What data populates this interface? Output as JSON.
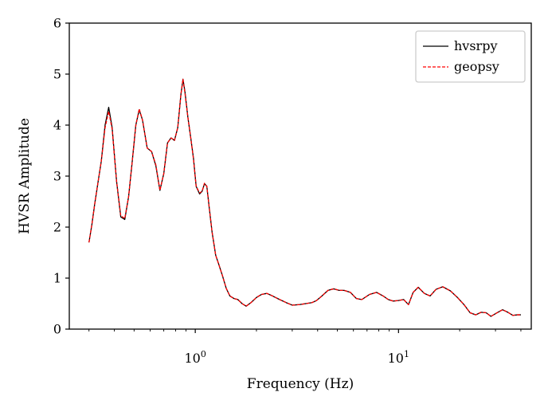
{
  "chart_data": {
    "type": "line",
    "title": "",
    "xlabel": "Frequency (Hz)",
    "ylabel": "HVSR Amplitude",
    "xscale": "log",
    "xlim": [
      0.24,
      45
    ],
    "ylim": [
      0,
      6
    ],
    "yticks": [
      "0",
      "1",
      "2",
      "3",
      "4",
      "5",
      "6"
    ],
    "xticks": [
      {
        "value": 1,
        "base": "10",
        "exp": "0"
      },
      {
        "value": 10,
        "base": "10",
        "exp": "1"
      }
    ],
    "grid": false,
    "legend_position": "top-right",
    "x": [
      0.3,
      0.31,
      0.32,
      0.33,
      0.345,
      0.36,
      0.375,
      0.39,
      0.41,
      0.43,
      0.45,
      0.47,
      0.49,
      0.51,
      0.53,
      0.55,
      0.58,
      0.61,
      0.64,
      0.67,
      0.7,
      0.73,
      0.76,
      0.79,
      0.82,
      0.85,
      0.87,
      0.89,
      0.92,
      0.95,
      0.98,
      1.01,
      1.05,
      1.08,
      1.11,
      1.14,
      1.17,
      1.21,
      1.26,
      1.31,
      1.36,
      1.42,
      1.48,
      1.55,
      1.62,
      1.7,
      1.78,
      1.88,
      2.0,
      2.12,
      2.25,
      2.4,
      2.6,
      2.8,
      3.0,
      3.25,
      3.5,
      3.75,
      3.95,
      4.2,
      4.5,
      4.8,
      5.1,
      5.4,
      5.8,
      6.2,
      6.6,
      7.2,
      7.8,
      8.4,
      8.9,
      9.4,
      10.0,
      10.6,
      11.2,
      11.8,
      12.5,
      13.4,
      14.3,
      15.3,
      16.5,
      18.0,
      19.5,
      21.0,
      22.5,
      24.0,
      25.5,
      27.0,
      28.5,
      30.5,
      32.5,
      34.5,
      36.5,
      38.5,
      40.0
    ],
    "series": [
      {
        "name": "hvsrpy",
        "color": "#000000",
        "style": "solid",
        "values": [
          1.7,
          2.05,
          2.45,
          2.8,
          3.3,
          4.0,
          4.35,
          3.95,
          2.9,
          2.2,
          2.15,
          2.6,
          3.3,
          4.0,
          4.3,
          4.1,
          3.55,
          3.48,
          3.2,
          2.72,
          3.05,
          3.65,
          3.75,
          3.7,
          3.95,
          4.6,
          4.9,
          4.65,
          4.15,
          3.75,
          3.35,
          2.8,
          2.65,
          2.7,
          2.85,
          2.8,
          2.4,
          1.9,
          1.45,
          1.25,
          1.05,
          0.8,
          0.65,
          0.6,
          0.58,
          0.5,
          0.45,
          0.52,
          0.62,
          0.68,
          0.7,
          0.65,
          0.58,
          0.52,
          0.47,
          0.48,
          0.5,
          0.52,
          0.56,
          0.65,
          0.76,
          0.79,
          0.76,
          0.76,
          0.72,
          0.6,
          0.58,
          0.68,
          0.72,
          0.65,
          0.58,
          0.55,
          0.56,
          0.58,
          0.48,
          0.72,
          0.82,
          0.7,
          0.65,
          0.78,
          0.83,
          0.75,
          0.62,
          0.48,
          0.32,
          0.28,
          0.33,
          0.32,
          0.25,
          0.32,
          0.38,
          0.33,
          0.27,
          0.28,
          0.28
        ]
      },
      {
        "name": "geopsy",
        "color": "#ff0000",
        "style": "dashed",
        "values": [
          1.7,
          2.05,
          2.45,
          2.8,
          3.3,
          3.95,
          4.27,
          3.92,
          2.9,
          2.22,
          2.17,
          2.6,
          3.3,
          4.0,
          4.32,
          4.1,
          3.55,
          3.48,
          3.22,
          2.72,
          3.05,
          3.65,
          3.75,
          3.7,
          3.95,
          4.6,
          4.9,
          4.62,
          4.15,
          3.75,
          3.33,
          2.8,
          2.67,
          2.7,
          2.86,
          2.8,
          2.4,
          1.9,
          1.45,
          1.25,
          1.05,
          0.8,
          0.65,
          0.6,
          0.58,
          0.5,
          0.45,
          0.52,
          0.62,
          0.68,
          0.7,
          0.65,
          0.58,
          0.52,
          0.47,
          0.48,
          0.5,
          0.52,
          0.56,
          0.65,
          0.76,
          0.79,
          0.76,
          0.76,
          0.72,
          0.6,
          0.58,
          0.68,
          0.72,
          0.65,
          0.58,
          0.55,
          0.56,
          0.58,
          0.48,
          0.72,
          0.82,
          0.7,
          0.65,
          0.78,
          0.83,
          0.75,
          0.62,
          0.48,
          0.32,
          0.28,
          0.33,
          0.32,
          0.25,
          0.32,
          0.38,
          0.33,
          0.27,
          0.28,
          0.28
        ]
      }
    ]
  }
}
